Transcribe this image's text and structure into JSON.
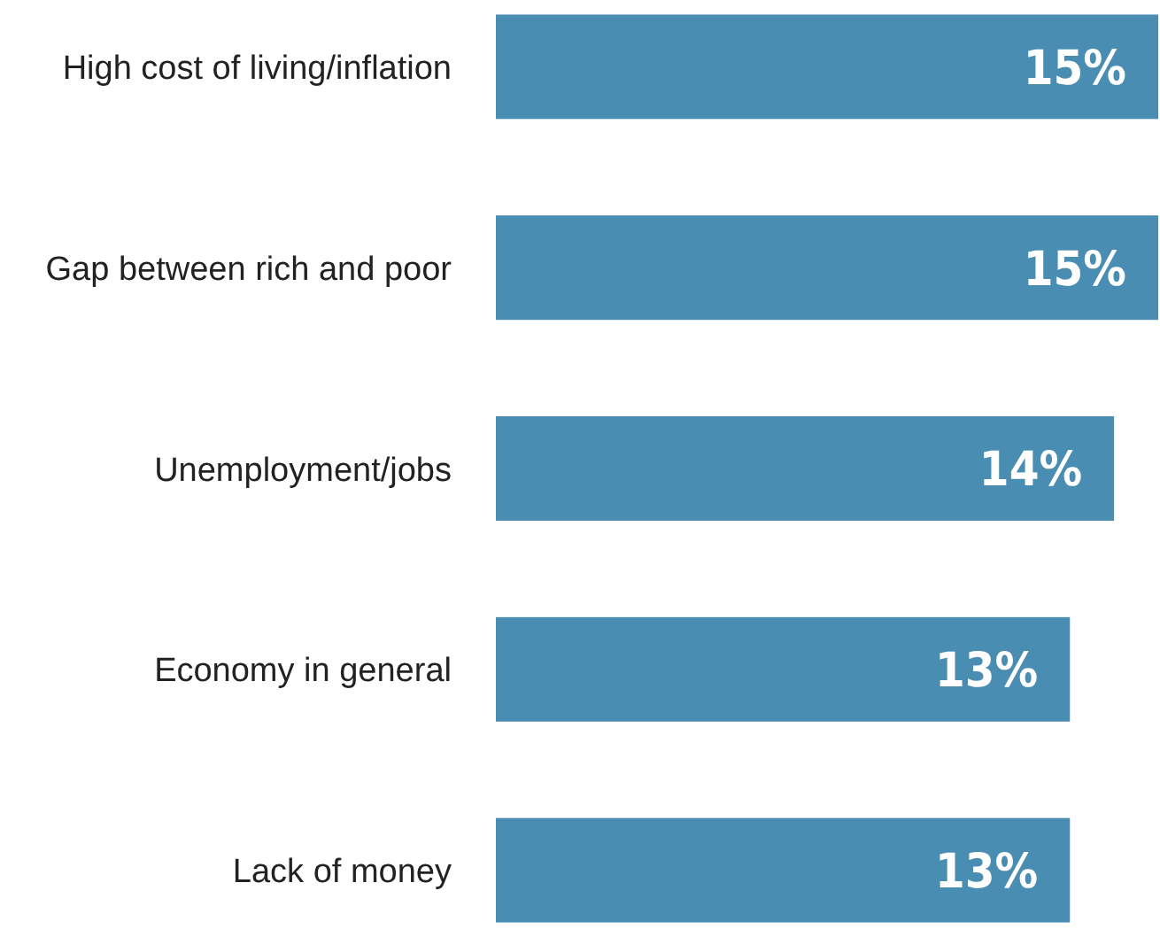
{
  "chart_data": {
    "type": "bar",
    "orientation": "horizontal",
    "categories": [
      "High cost of living/inflation",
      "Gap between rich and poor",
      "Unemployment/jobs",
      "Economy in general",
      "Lack of money"
    ],
    "values": [
      15,
      15,
      14,
      13,
      13
    ],
    "value_labels": [
      "15%",
      "15%",
      "14%",
      "13%",
      "13%"
    ],
    "color": "#4a8db2"
  }
}
